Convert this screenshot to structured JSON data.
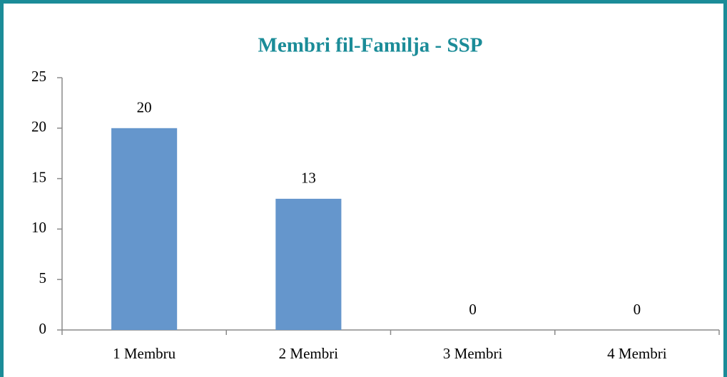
{
  "chart_data": {
    "type": "bar",
    "title": "Membri fil-Familja - SSP",
    "categories": [
      "1 Membru",
      "2 Membri",
      "3 Membri",
      "4 Membri"
    ],
    "values": [
      20,
      13,
      0,
      0
    ],
    "color": "#6596cc",
    "ylim": [
      0,
      25
    ],
    "yticks": [
      0,
      5,
      10,
      15,
      20,
      25
    ],
    "grid": false
  }
}
